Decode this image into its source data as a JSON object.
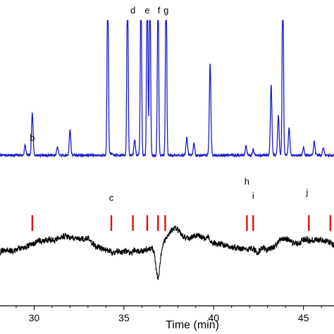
{
  "chart_data": {
    "type": "line",
    "title": "",
    "xlabel": "Time (min)",
    "ylabel": "",
    "xlim": [
      28.1,
      46.7
    ],
    "ylim": [
      0,
      1
    ],
    "x_ticks": [
      30,
      35,
      40,
      45
    ],
    "grid": false,
    "legend": "none",
    "colors": {
      "trace_top": "#1a1acc",
      "trace_bottom": "#000000",
      "markers": "#dd1111"
    },
    "series": [
      {
        "key": "top",
        "color": "#1a1acc",
        "baseline": 0.3,
        "peaks": [
          {
            "x": 29.5,
            "h": 0.05
          },
          {
            "x": 29.9,
            "h": 0.22
          },
          {
            "x": 31.3,
            "h": 0.04
          },
          {
            "x": 32.0,
            "h": 0.13
          },
          {
            "x": 34.1,
            "h": 0.97
          },
          {
            "x": 34.3,
            "h": 0.01
          },
          {
            "x": 35.2,
            "h": 0.96
          },
          {
            "x": 35.6,
            "h": 0.08
          },
          {
            "x": 35.95,
            "h": 0.92
          },
          {
            "x": 36.3,
            "h": 0.96
          },
          {
            "x": 36.45,
            "h": 0.96
          },
          {
            "x": 36.9,
            "h": 0.92
          },
          {
            "x": 37.35,
            "h": 0.96
          },
          {
            "x": 38.5,
            "h": 0.09
          },
          {
            "x": 38.9,
            "h": 0.06
          },
          {
            "x": 39.8,
            "h": 0.47
          },
          {
            "x": 41.8,
            "h": 0.05
          },
          {
            "x": 42.2,
            "h": 0.03
          },
          {
            "x": 43.2,
            "h": 0.36
          },
          {
            "x": 43.6,
            "h": 0.2
          },
          {
            "x": 43.85,
            "h": 0.97
          },
          {
            "x": 44.2,
            "h": 0.14
          },
          {
            "x": 45.0,
            "h": 0.04
          },
          {
            "x": 45.6,
            "h": 0.07
          },
          {
            "x": 46.1,
            "h": 0.04
          }
        ]
      },
      {
        "key": "bottom",
        "color": "#000000",
        "baseline": -0.16
      }
    ],
    "markers_x": [
      29.9,
      34.3,
      35.5,
      36.3,
      36.9,
      37.3,
      41.85,
      42.2,
      45.3,
      46.5
    ],
    "peak_labels": [
      {
        "text": "b",
        "x": 29.9
      },
      {
        "text": "c",
        "x": 34.3
      },
      {
        "text": "d",
        "x": 35.5
      },
      {
        "text": "e",
        "x": 36.3
      },
      {
        "text": "f",
        "x": 36.95
      },
      {
        "text": "g",
        "x": 37.35
      },
      {
        "text": "h",
        "x": 41.85
      },
      {
        "text": "i",
        "x": 42.2
      },
      {
        "text": "j",
        "x": 45.2
      }
    ]
  }
}
